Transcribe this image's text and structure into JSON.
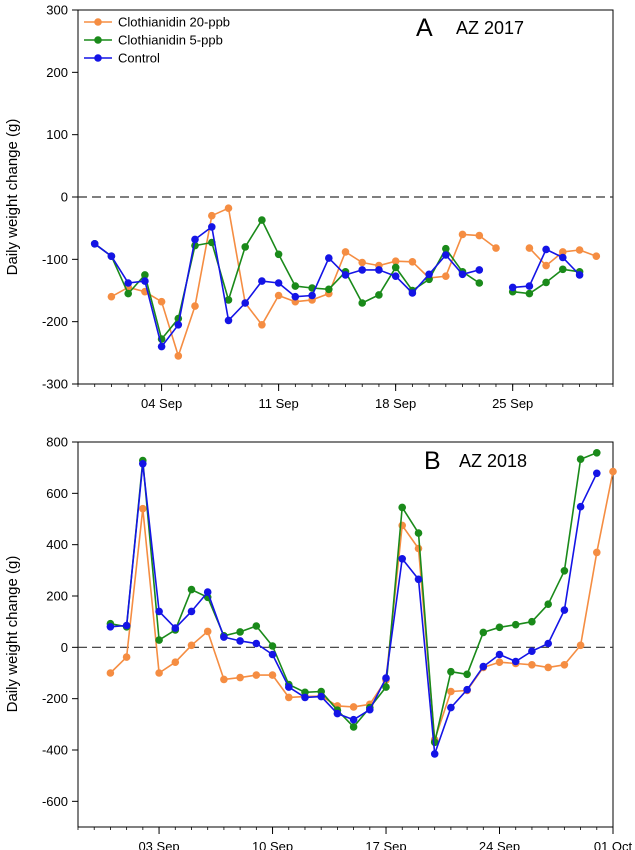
{
  "chart_data": [
    {
      "type": "line",
      "panel_letter": "A",
      "panel_title": "AZ 2017",
      "ylabel": "Daily weight change (g)",
      "xlabel": "",
      "ylim": [
        -300,
        300
      ],
      "yticks": [
        -300,
        -200,
        -100,
        0,
        100,
        200,
        300
      ],
      "xlim": [
        "2017-08-30",
        "2017-10-01"
      ],
      "xticks": [
        {
          "date": "2017-09-04",
          "label": "04 Sep"
        },
        {
          "date": "2017-09-11",
          "label": "11 Sep"
        },
        {
          "date": "2017-09-18",
          "label": "18 Sep"
        },
        {
          "date": "2017-09-25",
          "label": "25 Sep"
        }
      ],
      "reference_line": 0,
      "legend_position": "top-left",
      "grid": false,
      "series": [
        {
          "name": "Clothianidin 20-ppb",
          "color": "#f58d42",
          "points": [
            [
              "2017-09-01",
              -160
            ],
            [
              "2017-09-02",
              -145
            ],
            [
              "2017-09-03",
              -152
            ],
            [
              "2017-09-04",
              -168
            ],
            [
              "2017-09-05",
              -255
            ],
            [
              "2017-09-06",
              -175
            ],
            [
              "2017-09-07",
              -30
            ],
            [
              "2017-09-08",
              -18
            ],
            [
              "2017-09-09",
              -170
            ],
            [
              "2017-09-10",
              -205
            ],
            [
              "2017-09-11",
              -158
            ],
            [
              "2017-09-12",
              -168
            ],
            [
              "2017-09-13",
              -165
            ],
            [
              "2017-09-14",
              -155
            ],
            [
              "2017-09-15",
              -88
            ],
            [
              "2017-09-16",
              -105
            ],
            [
              "2017-09-17",
              -110
            ],
            [
              "2017-09-18",
              -103
            ],
            [
              "2017-09-19",
              -104
            ],
            [
              "2017-09-20",
              -130
            ],
            [
              "2017-09-21",
              -127
            ],
            [
              "2017-09-22",
              -60
            ],
            [
              "2017-09-23",
              -62
            ],
            [
              "2017-09-24",
              -82
            ],
            null,
            [
              "2017-09-26",
              -82
            ],
            [
              "2017-09-27",
              -110
            ],
            [
              "2017-09-28",
              -88
            ],
            [
              "2017-09-29",
              -85
            ],
            [
              "2017-09-30",
              -95
            ]
          ]
        },
        {
          "name": "Clothianidin 5-ppb",
          "color": "#1a8a1a",
          "points": [
            [
              "2017-08-31",
              -75
            ],
            [
              "2017-09-01",
              -95
            ],
            [
              "2017-09-02",
              -155
            ],
            [
              "2017-09-03",
              -125
            ],
            [
              "2017-09-04",
              -228
            ],
            [
              "2017-09-05",
              -195
            ],
            [
              "2017-09-06",
              -78
            ],
            [
              "2017-09-07",
              -73
            ],
            [
              "2017-09-08",
              -165
            ],
            [
              "2017-09-09",
              -80
            ],
            [
              "2017-09-10",
              -37
            ],
            [
              "2017-09-11",
              -92
            ],
            [
              "2017-09-12",
              -143
            ],
            [
              "2017-09-13",
              -146
            ],
            [
              "2017-09-14",
              -148
            ],
            [
              "2017-09-15",
              -120
            ],
            [
              "2017-09-16",
              -170
            ],
            [
              "2017-09-17",
              -157
            ],
            [
              "2017-09-18",
              -113
            ],
            [
              "2017-09-19",
              -150
            ],
            [
              "2017-09-20",
              -132
            ],
            [
              "2017-09-21",
              -83
            ],
            [
              "2017-09-22",
              -120
            ],
            [
              "2017-09-23",
              -138
            ],
            null,
            [
              "2017-09-25",
              -152
            ],
            [
              "2017-09-26",
              -155
            ],
            [
              "2017-09-27",
              -137
            ],
            [
              "2017-09-28",
              -116
            ],
            [
              "2017-09-29",
              -120
            ]
          ]
        },
        {
          "name": "Control",
          "color": "#1414e6",
          "points": [
            [
              "2017-08-31",
              -75
            ],
            [
              "2017-09-01",
              -95
            ],
            [
              "2017-09-02",
              -138
            ],
            [
              "2017-09-03",
              -135
            ],
            [
              "2017-09-04",
              -240
            ],
            [
              "2017-09-05",
              -205
            ],
            [
              "2017-09-06",
              -68
            ],
            [
              "2017-09-07",
              -48
            ],
            [
              "2017-09-08",
              -198
            ],
            [
              "2017-09-09",
              -170
            ],
            [
              "2017-09-10",
              -135
            ],
            [
              "2017-09-11",
              -138
            ],
            [
              "2017-09-12",
              -160
            ],
            [
              "2017-09-13",
              -158
            ],
            [
              "2017-09-14",
              -98
            ],
            [
              "2017-09-15",
              -125
            ],
            [
              "2017-09-16",
              -117
            ],
            [
              "2017-09-17",
              -117
            ],
            [
              "2017-09-18",
              -127
            ],
            [
              "2017-09-19",
              -154
            ],
            [
              "2017-09-20",
              -124
            ],
            [
              "2017-09-21",
              -93
            ],
            [
              "2017-09-22",
              -124
            ],
            [
              "2017-09-23",
              -117
            ],
            null,
            [
              "2017-09-25",
              -145
            ],
            [
              "2017-09-26",
              -143
            ],
            [
              "2017-09-27",
              -84
            ],
            [
              "2017-09-28",
              -97
            ],
            [
              "2017-09-29",
              -125
            ]
          ]
        }
      ]
    },
    {
      "type": "line",
      "panel_letter": "B",
      "panel_title": "AZ 2018",
      "ylabel": "Daily weight change (g)",
      "xlabel": "",
      "ylim": [
        -700,
        800
      ],
      "yticks": [
        -600,
        -400,
        -200,
        0,
        200,
        400,
        600,
        800
      ],
      "xlim": [
        "2018-08-29",
        "2018-10-01"
      ],
      "xticks": [
        {
          "date": "2018-09-03",
          "label": "03 Sep"
        },
        {
          "date": "2018-09-10",
          "label": "10 Sep"
        },
        {
          "date": "2018-09-17",
          "label": "17 Sep"
        },
        {
          "date": "2018-09-24",
          "label": "24 Sep"
        },
        {
          "date": "2018-10-01",
          "label": "01 Oct"
        }
      ],
      "reference_line": 0,
      "grid": false,
      "series": [
        {
          "name": "Clothianidin 20-ppb",
          "color": "#f58d42",
          "points": [
            [
              "2018-08-31",
              -100
            ],
            [
              "2018-09-01",
              -38
            ],
            [
              "2018-09-02",
              540
            ],
            [
              "2018-09-03",
              -100
            ],
            [
              "2018-09-04",
              -58
            ],
            [
              "2018-09-05",
              8
            ],
            [
              "2018-09-06",
              62
            ],
            [
              "2018-09-07",
              -125
            ],
            [
              "2018-09-08",
              -118
            ],
            [
              "2018-09-09",
              -108
            ],
            [
              "2018-09-10",
              -108
            ],
            [
              "2018-09-11",
              -195
            ],
            [
              "2018-09-12",
              -192
            ],
            [
              "2018-09-13",
              -190
            ],
            [
              "2018-09-14",
              -228
            ],
            [
              "2018-09-15",
              -232
            ],
            [
              "2018-09-16",
              -222
            ],
            [
              "2018-09-17",
              -127
            ],
            [
              "2018-09-18",
              475
            ],
            [
              "2018-09-19",
              385
            ],
            [
              "2018-09-20",
              -360
            ],
            [
              "2018-09-21",
              -172
            ],
            [
              "2018-09-22",
              -168
            ],
            [
              "2018-09-23",
              -78
            ],
            [
              "2018-09-24",
              -58
            ],
            [
              "2018-09-25",
              -63
            ],
            [
              "2018-09-26",
              -68
            ],
            [
              "2018-09-27",
              -78
            ],
            [
              "2018-09-28",
              -68
            ],
            [
              "2018-09-29",
              8
            ],
            [
              "2018-09-30",
              370
            ],
            [
              "2018-10-01",
              685
            ]
          ]
        },
        {
          "name": "Clothianidin 5-ppb",
          "color": "#1a8a1a",
          "points": [
            [
              "2018-08-31",
              92
            ],
            [
              "2018-09-01",
              80
            ],
            [
              "2018-09-02",
              728
            ],
            [
              "2018-09-03",
              28
            ],
            [
              "2018-09-04",
              68
            ],
            [
              "2018-09-05",
              225
            ],
            [
              "2018-09-06",
              195
            ],
            [
              "2018-09-07",
              45
            ],
            [
              "2018-09-08",
              60
            ],
            [
              "2018-09-09",
              83
            ],
            [
              "2018-09-10",
              5
            ],
            [
              "2018-09-11",
              -145
            ],
            [
              "2018-09-12",
              -175
            ],
            [
              "2018-09-13",
              -172
            ],
            [
              "2018-09-14",
              -245
            ],
            [
              "2018-09-15",
              -310
            ],
            [
              "2018-09-16",
              -235
            ],
            [
              "2018-09-17",
              -155
            ],
            [
              "2018-09-18",
              545
            ],
            [
              "2018-09-19",
              445
            ],
            [
              "2018-09-20",
              -370
            ],
            [
              "2018-09-21",
              -95
            ],
            [
              "2018-09-22",
              -105
            ],
            [
              "2018-09-23",
              58
            ],
            [
              "2018-09-24",
              78
            ],
            [
              "2018-09-25",
              88
            ],
            [
              "2018-09-26",
              100
            ],
            [
              "2018-09-27",
              168
            ],
            [
              "2018-09-28",
              298
            ],
            [
              "2018-09-29",
              733
            ],
            [
              "2018-09-30",
              758
            ]
          ]
        },
        {
          "name": "Control",
          "color": "#1414e6",
          "points": [
            [
              "2018-08-31",
              80
            ],
            [
              "2018-09-01",
              85
            ],
            [
              "2018-09-02",
              715
            ],
            [
              "2018-09-03",
              140
            ],
            [
              "2018-09-04",
              75
            ],
            [
              "2018-09-05",
              140
            ],
            [
              "2018-09-06",
              215
            ],
            [
              "2018-09-07",
              40
            ],
            [
              "2018-09-08",
              25
            ],
            [
              "2018-09-09",
              15
            ],
            [
              "2018-09-10",
              -28
            ],
            [
              "2018-09-11",
              -155
            ],
            [
              "2018-09-12",
              -195
            ],
            [
              "2018-09-13",
              -192
            ],
            [
              "2018-09-14",
              -258
            ],
            [
              "2018-09-15",
              -282
            ],
            [
              "2018-09-16",
              -243
            ],
            [
              "2018-09-17",
              -120
            ],
            [
              "2018-09-18",
              345
            ],
            [
              "2018-09-19",
              265
            ],
            [
              "2018-09-20",
              -415
            ],
            [
              "2018-09-21",
              -235
            ],
            [
              "2018-09-22",
              -165
            ],
            [
              "2018-09-23",
              -75
            ],
            [
              "2018-09-24",
              -28
            ],
            [
              "2018-09-25",
              -55
            ],
            [
              "2018-09-26",
              -15
            ],
            [
              "2018-09-27",
              15
            ],
            [
              "2018-09-28",
              145
            ],
            [
              "2018-09-29",
              548
            ],
            [
              "2018-09-30",
              678
            ]
          ]
        }
      ]
    }
  ]
}
